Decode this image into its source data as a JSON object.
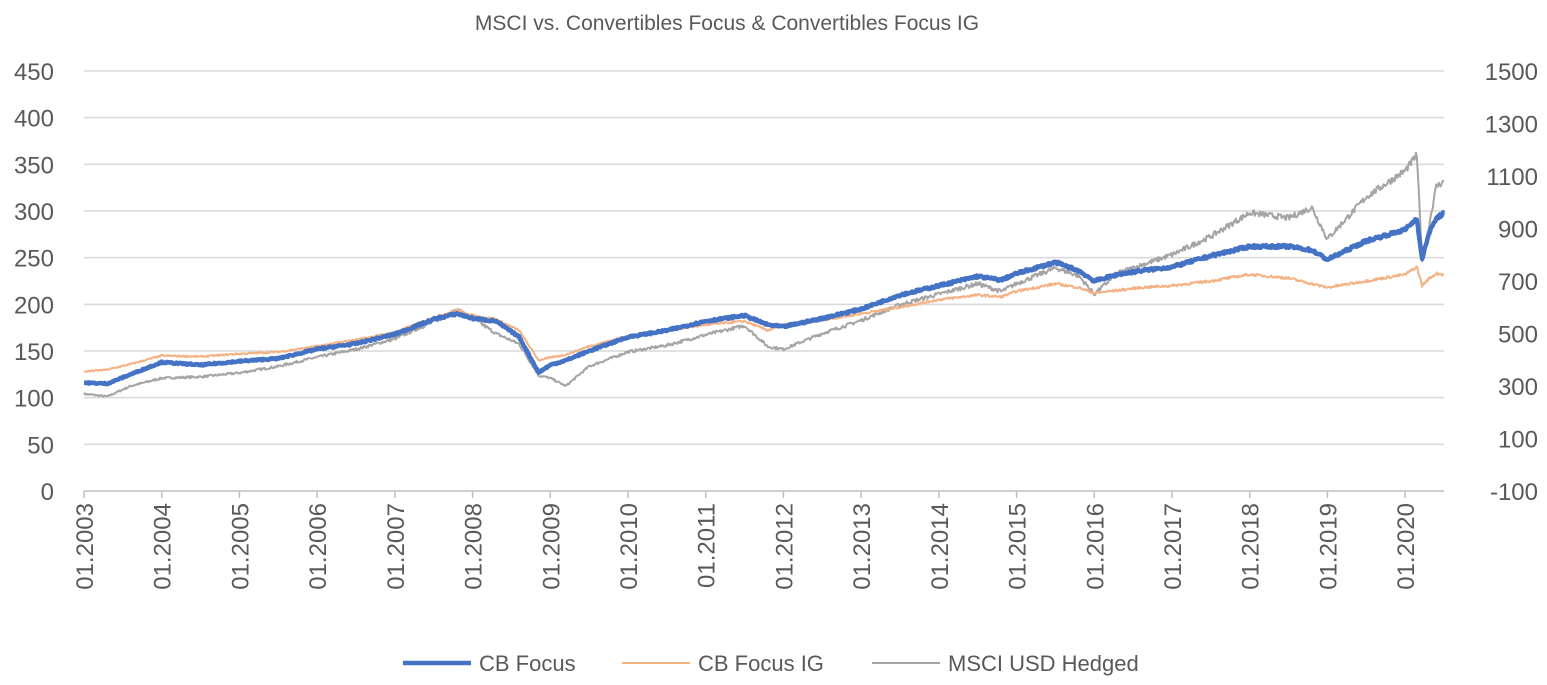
{
  "chart_data": {
    "type": "line",
    "title": "MSCI vs. Convertibles Focus & Convertibles Focus IG",
    "xlabel": "",
    "ylabel": "",
    "y2label": "",
    "x_tick_labels": [
      "01.2003",
      "01.2004",
      "01.2005",
      "01.2006",
      "01.2007",
      "01.2008",
      "01.2009",
      "01.2010",
      "01.2011",
      "01.2012",
      "01.2013",
      "01.2014",
      "01.2015",
      "01.2016",
      "01.2017",
      "01.2018",
      "01.2019",
      "01.2020"
    ],
    "xlim": [
      2003.0,
      2020.5
    ],
    "ylim_left": [
      0,
      450
    ],
    "y_ticks_left": [
      "0",
      "50",
      "100",
      "150",
      "200",
      "250",
      "300",
      "350",
      "400",
      "450"
    ],
    "ylim_right": [
      -100,
      1500
    ],
    "y_ticks_right": [
      "-100",
      "100",
      "300",
      "500",
      "700",
      "900",
      "1100",
      "1300",
      "1500"
    ],
    "grid": true,
    "legend_position": "bottom",
    "series": [
      {
        "name": "CB Focus",
        "axis": "left",
        "color": "#4472C4",
        "x": [
          2003.0,
          2003.3,
          2003.6,
          2004.0,
          2004.5,
          2005.0,
          2005.5,
          2006.0,
          2006.5,
          2007.0,
          2007.5,
          2007.8,
          2008.0,
          2008.3,
          2008.6,
          2008.85,
          2009.0,
          2009.2,
          2009.5,
          2010.0,
          2010.5,
          2011.0,
          2011.5,
          2011.8,
          2012.0,
          2012.5,
          2013.0,
          2013.5,
          2014.0,
          2014.5,
          2014.8,
          2015.0,
          2015.5,
          2015.8,
          2016.0,
          2016.3,
          2016.6,
          2017.0,
          2017.5,
          2018.0,
          2018.5,
          2018.8,
          2019.0,
          2019.5,
          2020.0,
          2020.15,
          2020.22,
          2020.3,
          2020.4,
          2020.5
        ],
        "values": [
          116,
          115,
          125,
          138,
          135,
          139,
          142,
          152,
          158,
          168,
          184,
          190,
          185,
          182,
          165,
          127,
          135,
          140,
          150,
          165,
          172,
          182,
          188,
          178,
          176,
          185,
          195,
          210,
          220,
          230,
          226,
          233,
          245,
          236,
          225,
          232,
          236,
          240,
          252,
          262,
          262,
          258,
          248,
          268,
          280,
          292,
          248,
          275,
          292,
          298
        ]
      },
      {
        "name": "CB Focus IG",
        "axis": "left",
        "color": "#F4B183",
        "x": [
          2003.0,
          2003.3,
          2003.6,
          2004.0,
          2004.5,
          2005.0,
          2005.5,
          2006.0,
          2006.5,
          2007.0,
          2007.5,
          2007.8,
          2008.0,
          2008.3,
          2008.6,
          2008.85,
          2009.0,
          2009.2,
          2009.5,
          2010.0,
          2010.5,
          2011.0,
          2011.5,
          2011.8,
          2012.0,
          2012.5,
          2013.0,
          2013.5,
          2014.0,
          2014.5,
          2014.8,
          2015.0,
          2015.5,
          2015.8,
          2016.0,
          2016.3,
          2016.6,
          2017.0,
          2017.5,
          2018.0,
          2018.5,
          2018.8,
          2019.0,
          2019.5,
          2020.0,
          2020.15,
          2020.22,
          2020.3,
          2020.4,
          2020.5
        ],
        "values": [
          128,
          130,
          136,
          145,
          144,
          147,
          149,
          155,
          162,
          170,
          186,
          194,
          188,
          184,
          172,
          140,
          143,
          146,
          155,
          166,
          172,
          178,
          182,
          172,
          178,
          183,
          190,
          197,
          205,
          210,
          208,
          214,
          222,
          218,
          212,
          215,
          218,
          220,
          225,
          232,
          228,
          222,
          218,
          225,
          232,
          240,
          220,
          227,
          233,
          232
        ]
      },
      {
        "name": "MSCI USD Hedged",
        "axis": "right",
        "color": "#A5A5A5",
        "x": [
          2003.0,
          2003.3,
          2003.6,
          2004.0,
          2004.5,
          2005.0,
          2005.5,
          2006.0,
          2006.5,
          2007.0,
          2007.5,
          2007.8,
          2008.0,
          2008.3,
          2008.6,
          2008.85,
          2009.0,
          2009.2,
          2009.5,
          2010.0,
          2010.5,
          2011.0,
          2011.5,
          2011.8,
          2012.0,
          2012.5,
          2013.0,
          2013.5,
          2014.0,
          2014.5,
          2014.8,
          2015.0,
          2015.5,
          2015.8,
          2016.0,
          2016.3,
          2016.6,
          2017.0,
          2017.5,
          2018.0,
          2018.5,
          2018.8,
          2019.0,
          2019.5,
          2020.0,
          2020.15,
          2020.22,
          2020.3,
          2020.4,
          2020.5
        ],
        "values": [
          270,
          260,
          300,
          330,
          335,
          350,
          375,
          410,
          440,
          480,
          545,
          590,
          560,
          500,
          460,
          340,
          330,
          300,
          375,
          430,
          455,
          495,
          530,
          450,
          440,
          500,
          550,
          610,
          650,
          690,
          660,
          690,
          750,
          720,
          650,
          730,
          760,
          800,
          870,
          960,
          940,
          980,
          860,
          1020,
          1120,
          1180,
          780,
          900,
          1060,
          1080
        ]
      }
    ]
  }
}
